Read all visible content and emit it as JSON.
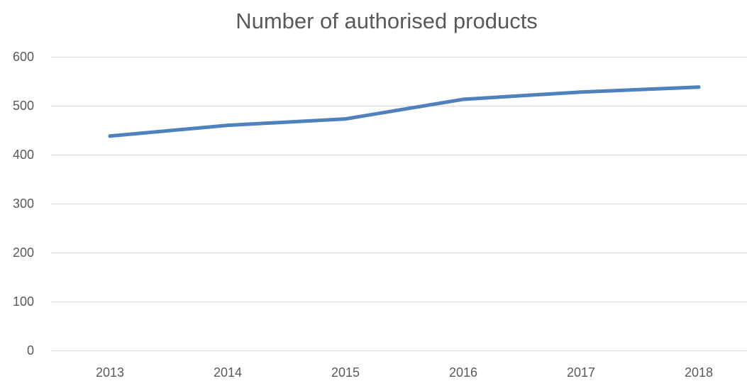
{
  "chart_data": {
    "type": "line",
    "title": "Number of authorised products",
    "xlabel": "",
    "ylabel": "",
    "categories": [
      "2013",
      "2014",
      "2015",
      "2016",
      "2017",
      "2018"
    ],
    "series": [
      {
        "values": [
          438,
          460,
          473,
          513,
          528,
          538
        ],
        "color": "#4f81bd"
      }
    ],
    "ylim": [
      0,
      600
    ],
    "yticks": [
      "0",
      "100",
      "200",
      "300",
      "400",
      "500",
      "600"
    ],
    "grid": true,
    "legend": "none"
  }
}
